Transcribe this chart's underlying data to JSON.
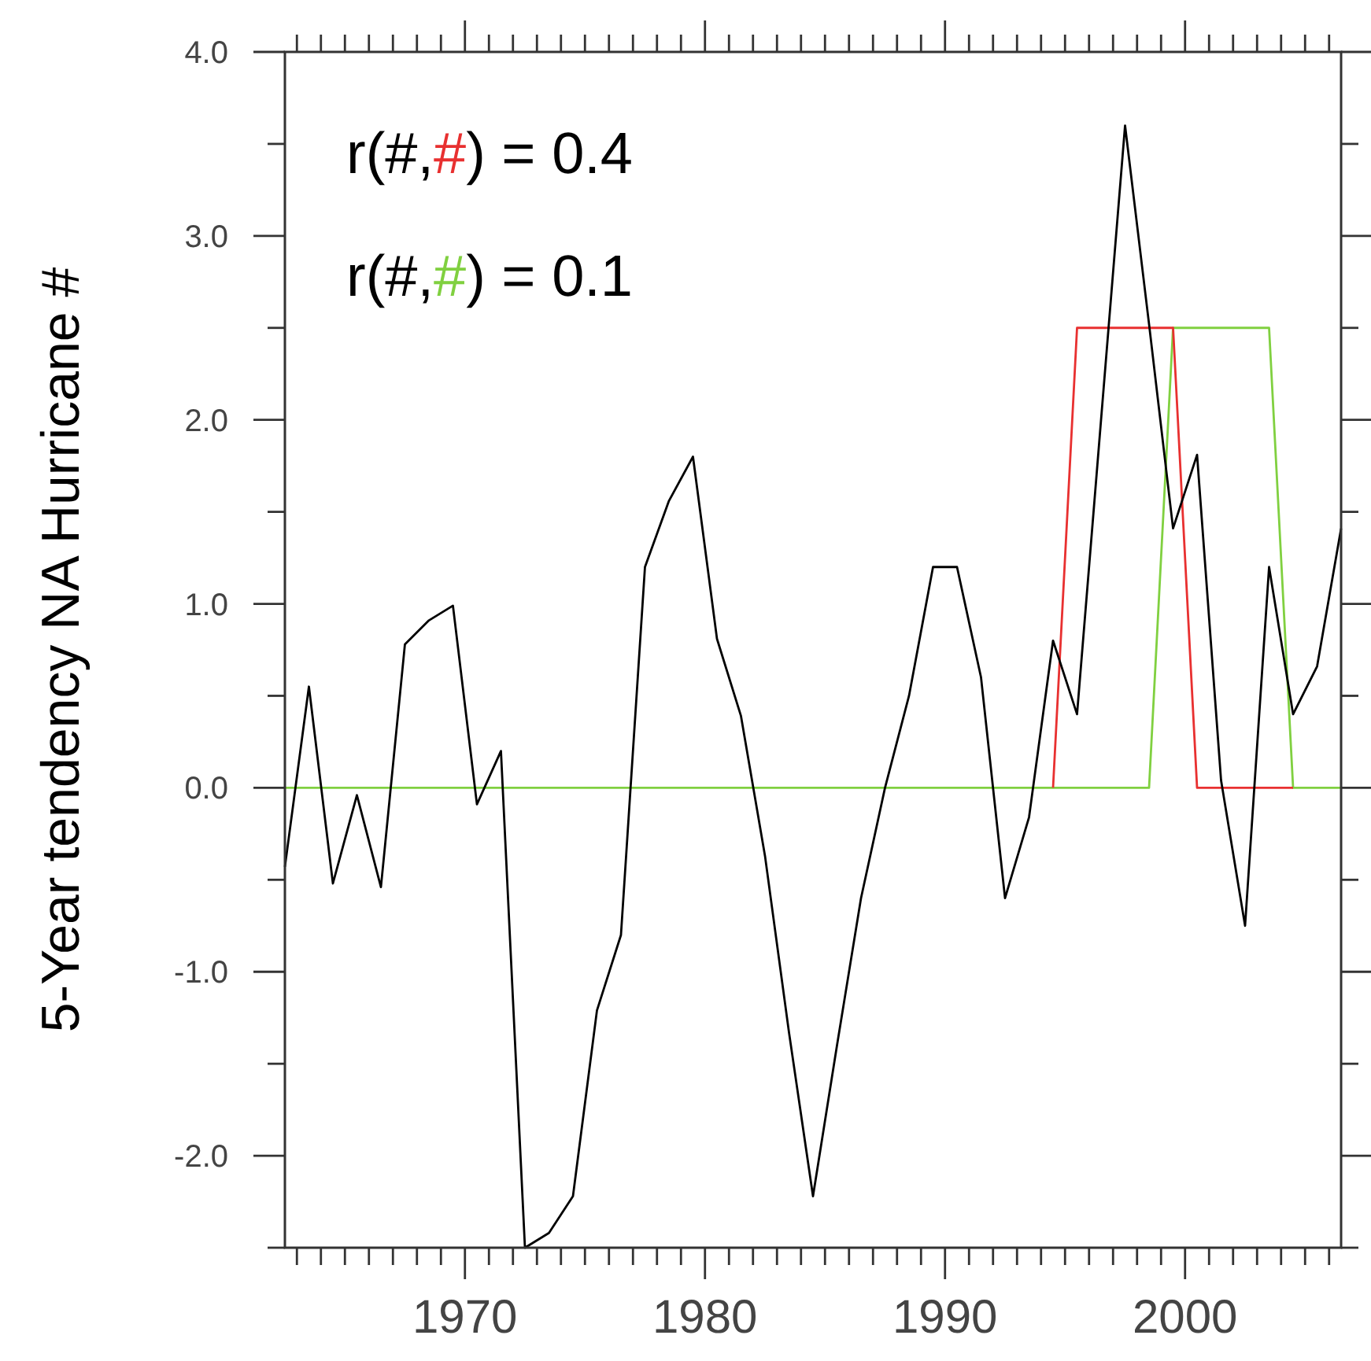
{
  "chart_data": {
    "type": "line",
    "ylabel": "5-Year tendency NA Hurricane #",
    "annotations": [
      "r(#,#) = 0.4",
      "r(#,#) = 0.1"
    ],
    "xlim": [
      1962.5,
      2006.5
    ],
    "xticks": [
      {
        "value": 1963,
        "label": null
      },
      {
        "value": 1964,
        "label": null
      },
      {
        "value": 1965,
        "label": null
      },
      {
        "value": 1966,
        "label": null
      },
      {
        "value": 1967,
        "label": null
      },
      {
        "value": 1968,
        "label": null
      },
      {
        "value": 1969,
        "label": null
      },
      1970,
      {
        "value": 1971,
        "label": null
      },
      {
        "value": 1972,
        "label": null
      },
      {
        "value": 1973,
        "label": null
      },
      {
        "value": 1974,
        "label": null
      },
      {
        "value": 1975,
        "label": null
      },
      {
        "value": 1976,
        "label": null
      },
      {
        "value": 1977,
        "label": null
      },
      {
        "value": 1978,
        "label": null
      },
      {
        "value": 1979,
        "label": null
      },
      1980,
      {
        "value": 1981,
        "label": null
      },
      {
        "value": 1982,
        "label": null
      },
      {
        "value": 1983,
        "label": null
      },
      {
        "value": 1984,
        "label": null
      },
      {
        "value": 1985,
        "label": null
      },
      {
        "value": 1986,
        "label": null
      },
      {
        "value": 1987,
        "label": null
      },
      {
        "value": 1988,
        "label": null
      },
      {
        "value": 1989,
        "label": null
      },
      1990,
      {
        "value": 1991,
        "label": null
      },
      {
        "value": 1992,
        "label": null
      },
      {
        "value": 1993,
        "label": null
      },
      {
        "value": 1994,
        "label": null
      },
      {
        "value": 1995,
        "label": null
      },
      {
        "value": 1996,
        "label": null
      },
      {
        "value": 1997,
        "label": null
      },
      {
        "value": 1998,
        "label": null
      },
      {
        "value": 1999,
        "label": null
      },
      2000,
      {
        "value": 2001,
        "label": null
      },
      {
        "value": 2002,
        "label": null
      },
      {
        "value": 2003,
        "label": null
      },
      {
        "value": 2004,
        "label": null
      },
      {
        "value": 2005,
        "label": null
      },
      {
        "value": 2006,
        "label": null
      }
    ],
    "ylim": [
      -2.5,
      4
    ],
    "yticks": [
      {
        "value": -2.5,
        "label": null
      },
      {
        "value": -2,
        "label": "-2.0"
      },
      {
        "value": -1.5,
        "label": null
      },
      {
        "value": -1,
        "label": "-1.0"
      },
      {
        "value": -0.5,
        "label": null
      },
      {
        "value": 0,
        "label": "0.0"
      },
      {
        "value": 0.5,
        "label": null
      },
      {
        "value": 1,
        "label": "1.0"
      },
      {
        "value": 1.5,
        "label": null
      },
      {
        "value": 2,
        "label": "2.0"
      },
      {
        "value": 2.5,
        "label": null
      },
      {
        "value": 3,
        "label": "3.0"
      },
      {
        "value": 3.5,
        "label": null
      },
      {
        "value": 4,
        "label": "4.0"
      }
    ],
    "grid": false,
    "marker": "none",
    "line_style": "solid",
    "series": [
      {
        "color": "#80d040",
        "x": [
          1962.5,
          1998.5,
          1999.5,
          2003.5,
          2004.5,
          2006.5
        ],
        "values": [
          0,
          0,
          2.5,
          2.5,
          0,
          0
        ]
      },
      {
        "color": "#e83030",
        "x": [
          1994.5,
          1995.5,
          1999.5,
          2000.5,
          2004.5
        ],
        "values": [
          0,
          2.5,
          2.5,
          0,
          0
        ]
      },
      {
        "color": "#000000",
        "x": [
          1962.5,
          1963.5,
          1964.5,
          1965.5,
          1966.5,
          1967.5,
          1968.5,
          1969.5,
          1970.5,
          1971.5,
          1972.5,
          1973.5,
          1974.5,
          1975.5,
          1976.5,
          1977.5,
          1978.5,
          1979.5,
          1980.5,
          1981.5,
          1982.5,
          1983.5,
          1984.5,
          1985.5,
          1986.5,
          1987.5,
          1988.5,
          1989.5,
          1990.5,
          1991.5,
          1992.5,
          1993.5,
          1994.5,
          1995.5,
          1996.5,
          1997.5,
          1998.5,
          1999.5,
          2000.5,
          2001.5,
          2002.5,
          2003.5,
          2004.5,
          2005.5,
          2006.5
        ],
        "values": [
          -0.43,
          0.55,
          -0.52,
          -0.04,
          -0.54,
          0.78,
          0.91,
          0.99,
          -0.09,
          0.2,
          -2.5,
          -2.42,
          -2.22,
          -1.21,
          -0.8,
          1.2,
          1.56,
          1.8,
          0.81,
          0.39,
          -0.37,
          -1.33,
          -2.22,
          -1.4,
          -0.6,
          0.0,
          0.5,
          1.2,
          1.2,
          0.6,
          -0.6,
          -0.16,
          0.8,
          0.4,
          2.0,
          3.6,
          2.52,
          1.41,
          1.81,
          0.04,
          -0.75,
          1.2,
          0.4,
          0.66,
          1.41
        ]
      }
    ]
  }
}
